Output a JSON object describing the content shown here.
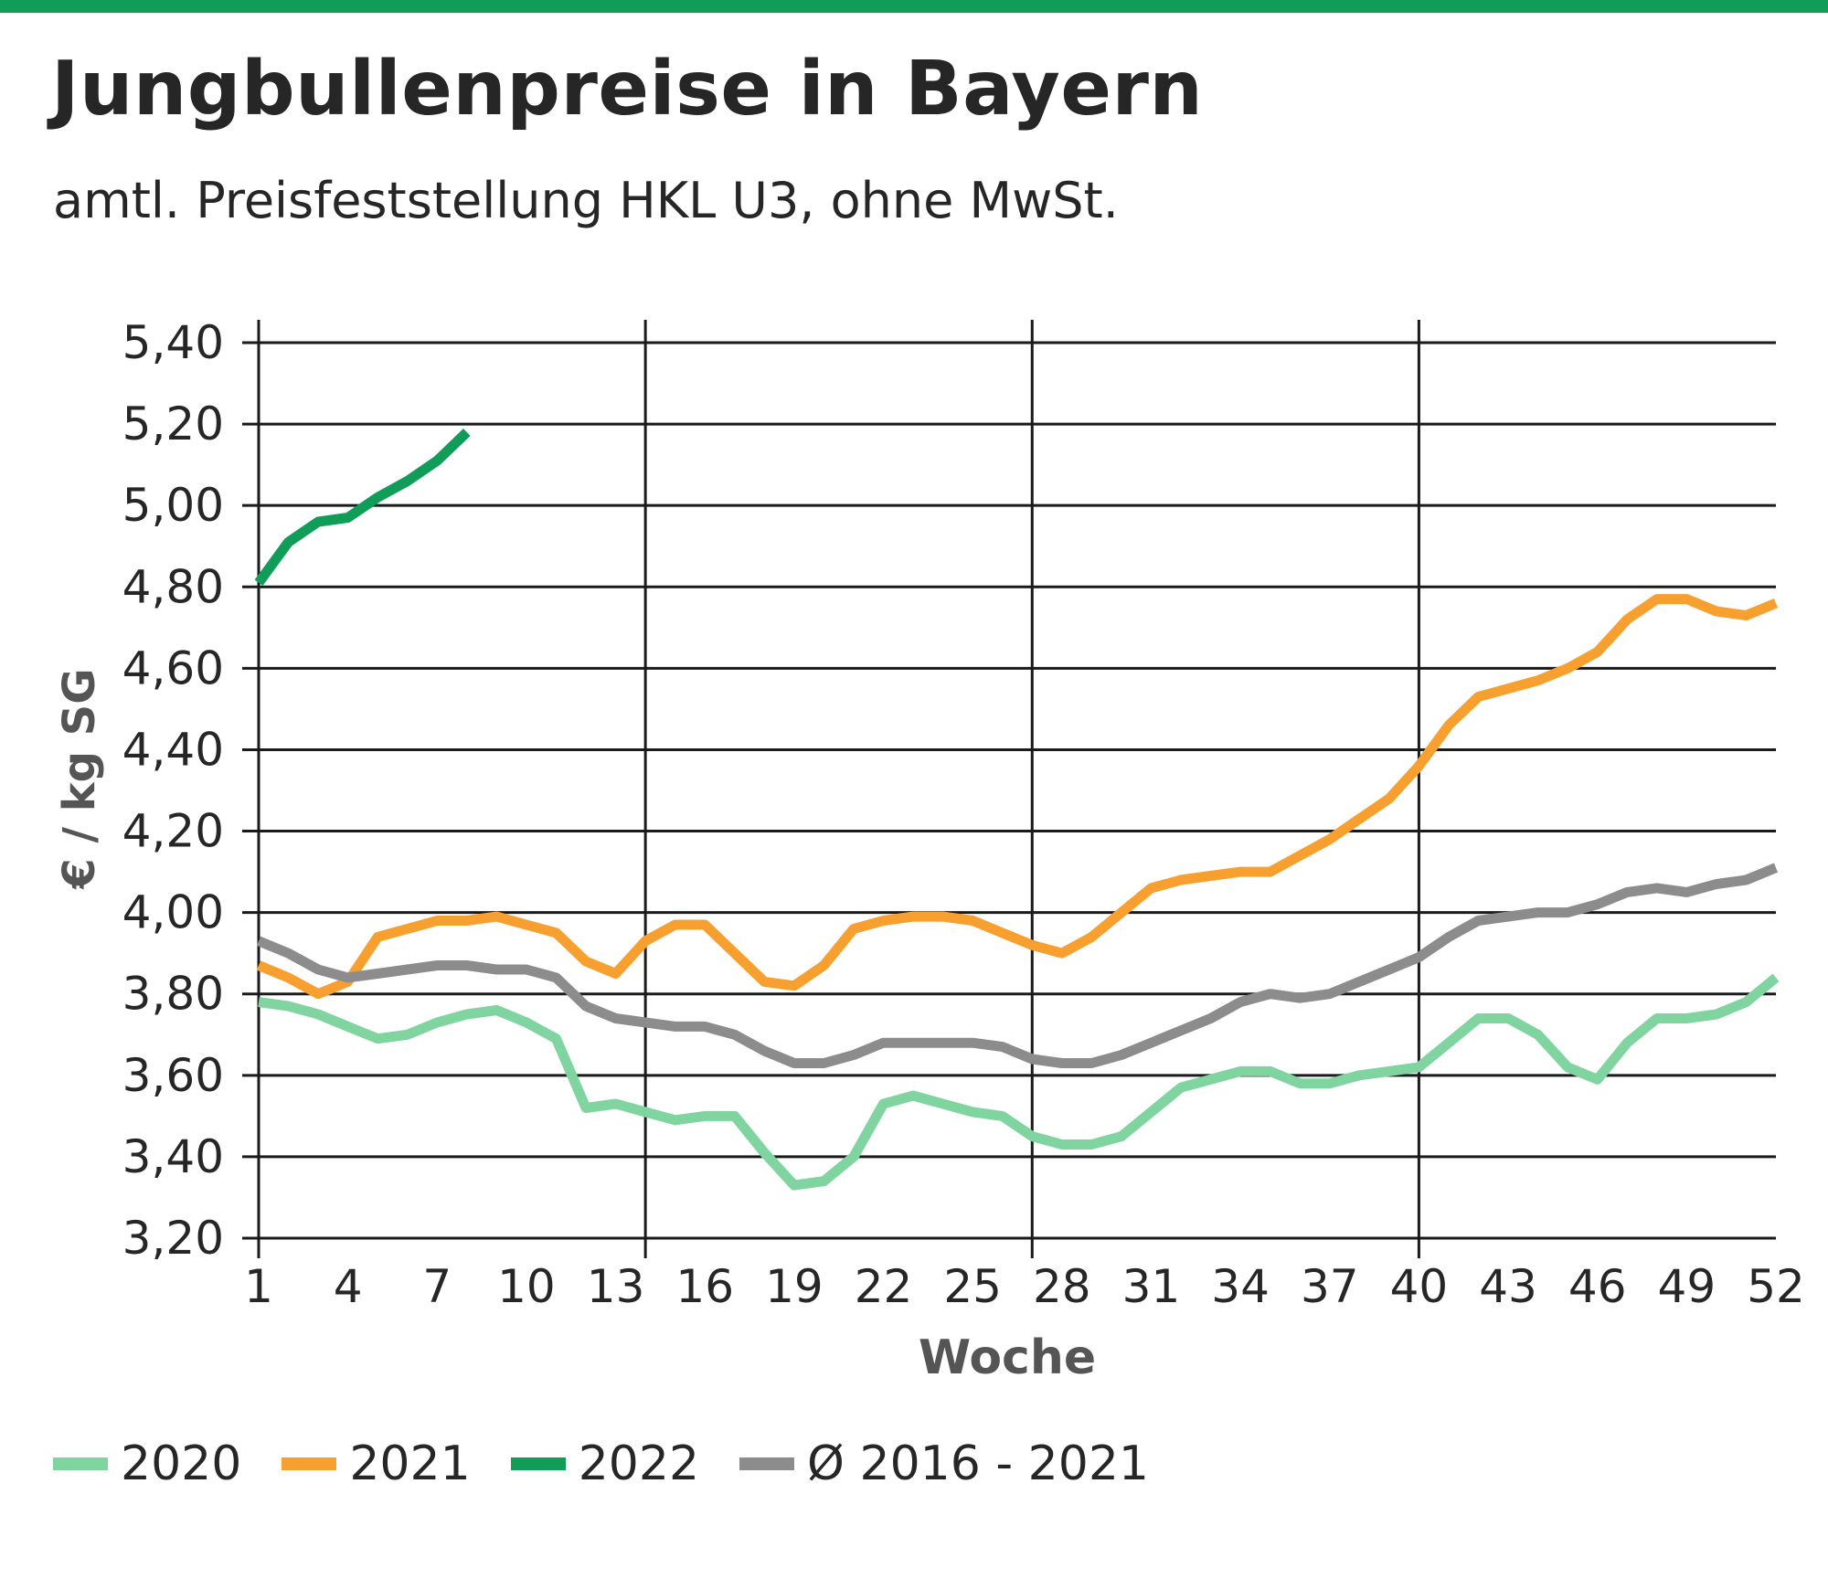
{
  "header": {
    "title": "Jungbullenpreise in Bayern",
    "subtitle": "amtl. Preisfeststellung HKL U3, ohne MwSt."
  },
  "colors": {
    "top_bar": "#0f9d58",
    "grid": "#1a1a1a",
    "text": "#333333",
    "axis_label": "#555555"
  },
  "chart_data": {
    "type": "line",
    "xlabel": "Woche",
    "ylabel": "€ / kg SG",
    "xlim": [
      1,
      52
    ],
    "ylim": [
      3.2,
      5.4
    ],
    "xticks": [
      1,
      4,
      7,
      10,
      13,
      16,
      19,
      22,
      25,
      28,
      31,
      34,
      37,
      40,
      43,
      46,
      49,
      52
    ],
    "yticks": [
      3.2,
      3.4,
      3.6,
      3.8,
      4.0,
      4.2,
      4.4,
      4.6,
      4.8,
      5.0,
      5.2,
      5.4
    ],
    "ytick_labels": [
      "3,20",
      "3,40",
      "3,60",
      "3,80",
      "4,00",
      "4,20",
      "4,40",
      "4,60",
      "4,80",
      "5,00",
      "5,20",
      "5,40"
    ],
    "vertical_gridlines_at": [
      1,
      14,
      27,
      40
    ],
    "grid": true,
    "legend_position": "bottom",
    "series": [
      {
        "name": "2020",
        "color": "#7fd4a0",
        "x": [
          1,
          2,
          3,
          4,
          5,
          6,
          7,
          8,
          9,
          10,
          11,
          12,
          13,
          14,
          15,
          16,
          17,
          18,
          19,
          20,
          21,
          22,
          23,
          24,
          25,
          26,
          27,
          28,
          29,
          30,
          31,
          32,
          33,
          34,
          35,
          36,
          37,
          38,
          39,
          40,
          41,
          42,
          43,
          44,
          45,
          46,
          47,
          48,
          49,
          50,
          51,
          52
        ],
        "values": [
          3.78,
          3.77,
          3.75,
          3.72,
          3.69,
          3.7,
          3.73,
          3.75,
          3.76,
          3.73,
          3.69,
          3.52,
          3.53,
          3.51,
          3.49,
          3.5,
          3.5,
          3.41,
          3.33,
          3.34,
          3.4,
          3.53,
          3.55,
          3.53,
          3.51,
          3.5,
          3.45,
          3.43,
          3.43,
          3.45,
          3.51,
          3.57,
          3.59,
          3.61,
          3.61,
          3.58,
          3.58,
          3.6,
          3.61,
          3.62,
          3.68,
          3.74,
          3.74,
          3.7,
          3.62,
          3.59,
          3.68,
          3.74,
          3.74,
          3.75,
          3.78,
          3.84
        ]
      },
      {
        "name": "2021",
        "color": "#f7a030",
        "x": [
          1,
          2,
          3,
          4,
          5,
          6,
          7,
          8,
          9,
          10,
          11,
          12,
          13,
          14,
          15,
          16,
          17,
          18,
          19,
          20,
          21,
          22,
          23,
          24,
          25,
          26,
          27,
          28,
          29,
          30,
          31,
          32,
          33,
          34,
          35,
          36,
          37,
          38,
          39,
          40,
          41,
          42,
          43,
          44,
          45,
          46,
          47,
          48,
          49,
          50,
          51,
          52
        ],
        "values": [
          3.87,
          3.84,
          3.8,
          3.83,
          3.94,
          3.96,
          3.98,
          3.98,
          3.99,
          3.97,
          3.95,
          3.88,
          3.85,
          3.93,
          3.97,
          3.97,
          3.9,
          3.83,
          3.82,
          3.87,
          3.96,
          3.98,
          3.99,
          3.99,
          3.98,
          3.95,
          3.92,
          3.9,
          3.94,
          4.0,
          4.06,
          4.08,
          4.09,
          4.1,
          4.1,
          4.14,
          4.18,
          4.23,
          4.28,
          4.36,
          4.46,
          4.53,
          4.55,
          4.57,
          4.6,
          4.64,
          4.72,
          4.77,
          4.77,
          4.74,
          4.73,
          4.76
        ]
      },
      {
        "name": "2022",
        "color": "#0f9d58",
        "x": [
          1,
          2,
          3,
          4,
          5,
          6,
          7,
          8
        ],
        "values": [
          4.81,
          4.91,
          4.96,
          4.97,
          5.02,
          5.06,
          5.11,
          5.18
        ]
      },
      {
        "name": "Ø 2016 - 2021",
        "color": "#8c8c8c",
        "x": [
          1,
          2,
          3,
          4,
          5,
          6,
          7,
          8,
          9,
          10,
          11,
          12,
          13,
          14,
          15,
          16,
          17,
          18,
          19,
          20,
          21,
          22,
          23,
          24,
          25,
          26,
          27,
          28,
          29,
          30,
          31,
          32,
          33,
          34,
          35,
          36,
          37,
          38,
          39,
          40,
          41,
          42,
          43,
          44,
          45,
          46,
          47,
          48,
          49,
          50,
          51,
          52
        ],
        "values": [
          3.93,
          3.9,
          3.86,
          3.84,
          3.85,
          3.86,
          3.87,
          3.87,
          3.86,
          3.86,
          3.84,
          3.77,
          3.74,
          3.73,
          3.72,
          3.72,
          3.7,
          3.66,
          3.63,
          3.63,
          3.65,
          3.68,
          3.68,
          3.68,
          3.68,
          3.67,
          3.64,
          3.63,
          3.63,
          3.65,
          3.68,
          3.71,
          3.74,
          3.78,
          3.8,
          3.79,
          3.8,
          3.83,
          3.86,
          3.89,
          3.94,
          3.98,
          3.99,
          4.0,
          4.0,
          4.02,
          4.05,
          4.06,
          4.05,
          4.07,
          4.08,
          4.11
        ]
      }
    ]
  }
}
